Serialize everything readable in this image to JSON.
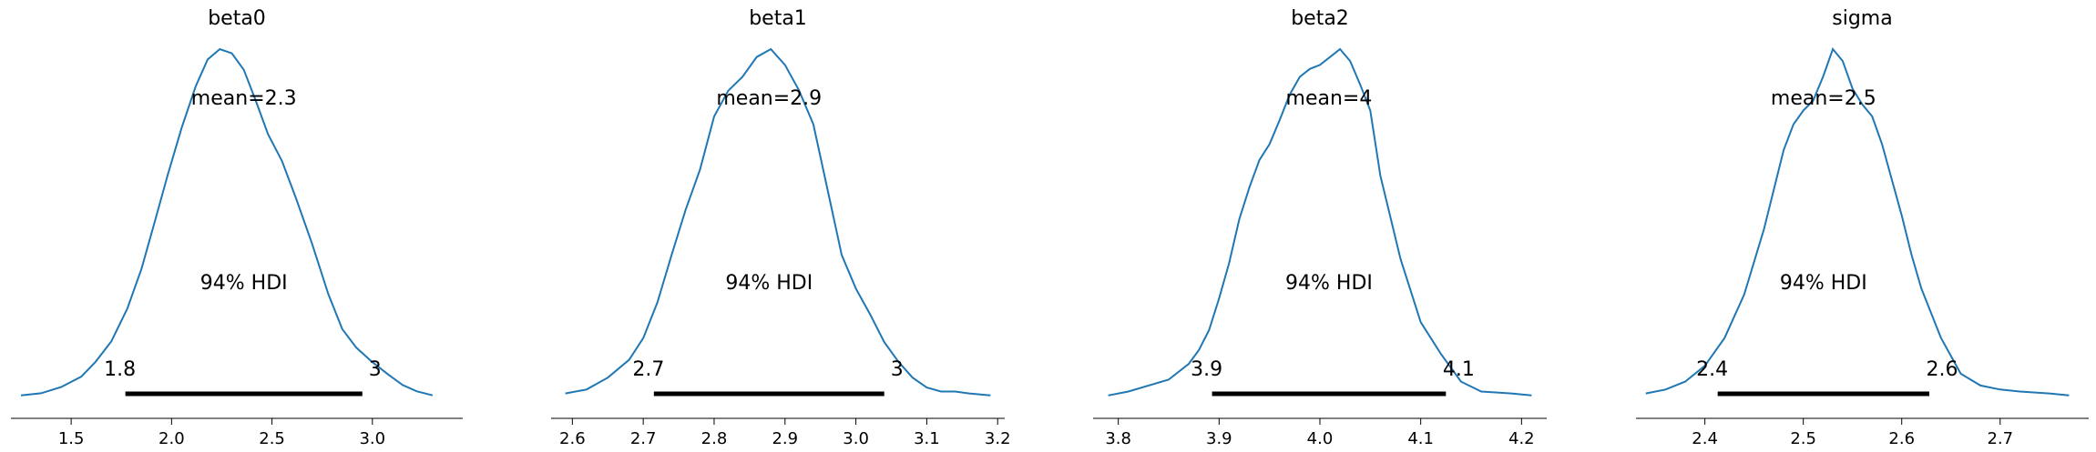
{
  "chart_data": [
    {
      "type": "line",
      "title": "beta0",
      "mean_label": "mean=2.3",
      "hdi_label": "94% HDI",
      "hdi": [
        1.77,
        2.95
      ],
      "hdi_low_label": "1.8",
      "hdi_high_label": "3",
      "xlim": [
        1.2,
        3.45
      ],
      "xticks": [
        1.5,
        2.0,
        2.5,
        3.0
      ],
      "xtick_labels": [
        "1.5",
        "2.0",
        "2.5",
        "3.0"
      ],
      "density": {
        "x": [
          1.25,
          1.35,
          1.45,
          1.55,
          1.62,
          1.7,
          1.78,
          1.85,
          1.92,
          1.98,
          2.05,
          2.12,
          2.18,
          2.24,
          2.3,
          2.36,
          2.42,
          2.48,
          2.55,
          2.62,
          2.7,
          2.78,
          2.85,
          2.92,
          3.0,
          3.08,
          3.15,
          3.22,
          3.3
        ],
        "y": [
          0.01,
          0.02,
          0.05,
          0.1,
          0.17,
          0.27,
          0.43,
          0.62,
          0.86,
          1.07,
          1.3,
          1.5,
          1.63,
          1.68,
          1.66,
          1.58,
          1.43,
          1.27,
          1.14,
          0.96,
          0.74,
          0.5,
          0.33,
          0.24,
          0.17,
          0.11,
          0.06,
          0.03,
          0.01
        ]
      }
    },
    {
      "type": "line",
      "title": "beta1",
      "mean_label": "mean=2.9",
      "hdi_label": "94% HDI",
      "hdi": [
        2.715,
        3.04
      ],
      "hdi_low_label": "2.7",
      "hdi_high_label": "3",
      "xlim": [
        2.57,
        3.21
      ],
      "xticks": [
        2.6,
        2.7,
        2.8,
        2.9,
        3.0,
        3.1,
        3.2
      ],
      "xtick_labels": [
        "2.6",
        "2.7",
        "2.8",
        "2.9",
        "3.0",
        "3.1",
        "3.2"
      ],
      "density": {
        "x": [
          2.59,
          2.62,
          2.65,
          2.68,
          2.7,
          2.72,
          2.74,
          2.76,
          2.78,
          2.8,
          2.82,
          2.84,
          2.86,
          2.88,
          2.9,
          2.92,
          2.94,
          2.96,
          2.98,
          3.0,
          3.02,
          3.04,
          3.06,
          3.08,
          3.1,
          3.12,
          3.14,
          3.16,
          3.19
        ],
        "y": [
          0.02,
          0.04,
          0.1,
          0.19,
          0.3,
          0.48,
          0.72,
          0.95,
          1.15,
          1.42,
          1.55,
          1.62,
          1.72,
          1.76,
          1.68,
          1.55,
          1.38,
          1.05,
          0.72,
          0.55,
          0.42,
          0.28,
          0.18,
          0.1,
          0.05,
          0.03,
          0.03,
          0.02,
          0.01
        ]
      }
    },
    {
      "type": "line",
      "title": "beta2",
      "mean_label": "mean=4",
      "hdi_label": "94% HDI",
      "hdi": [
        3.893,
        4.125
      ],
      "hdi_low_label": "3.9",
      "hdi_high_label": "4.1",
      "xlim": [
        3.775,
        4.225
      ],
      "xticks": [
        3.8,
        3.9,
        4.0,
        4.1,
        4.2
      ],
      "xtick_labels": [
        "3.8",
        "3.9",
        "4.0",
        "4.1",
        "4.2"
      ],
      "density": {
        "x": [
          3.79,
          3.81,
          3.83,
          3.85,
          3.87,
          3.88,
          3.89,
          3.9,
          3.91,
          3.92,
          3.93,
          3.94,
          3.95,
          3.96,
          3.97,
          3.98,
          3.99,
          4.0,
          4.01,
          4.02,
          4.03,
          4.04,
          4.05,
          4.06,
          4.08,
          4.1,
          4.12,
          4.14,
          4.16,
          4.19,
          4.21
        ],
        "y": [
          0.01,
          0.03,
          0.06,
          0.09,
          0.17,
          0.24,
          0.34,
          0.5,
          0.68,
          0.9,
          1.06,
          1.2,
          1.28,
          1.4,
          1.53,
          1.62,
          1.66,
          1.68,
          1.72,
          1.76,
          1.7,
          1.58,
          1.45,
          1.12,
          0.7,
          0.38,
          0.22,
          0.08,
          0.03,
          0.02,
          0.01
        ]
      }
    },
    {
      "type": "line",
      "title": "sigma",
      "mean_label": "mean=2.5",
      "hdi_label": "94% HDI",
      "hdi": [
        2.413,
        2.628
      ],
      "hdi_low_label": "2.4",
      "hdi_high_label": "2.6",
      "xlim": [
        2.33,
        2.79
      ],
      "xticks": [
        2.4,
        2.5,
        2.6,
        2.7
      ],
      "xtick_labels": [
        "2.4",
        "2.5",
        "2.6",
        "2.7"
      ],
      "density": {
        "x": [
          2.34,
          2.36,
          2.38,
          2.4,
          2.42,
          2.44,
          2.46,
          2.47,
          2.48,
          2.49,
          2.5,
          2.51,
          2.52,
          2.53,
          2.54,
          2.55,
          2.56,
          2.57,
          2.58,
          2.59,
          2.6,
          2.61,
          2.62,
          2.64,
          2.66,
          2.68,
          2.7,
          2.72,
          2.75,
          2.77
        ],
        "y": [
          0.02,
          0.04,
          0.08,
          0.16,
          0.3,
          0.52,
          0.85,
          1.05,
          1.25,
          1.38,
          1.45,
          1.5,
          1.62,
          1.76,
          1.7,
          1.56,
          1.48,
          1.42,
          1.28,
          1.1,
          0.92,
          0.72,
          0.55,
          0.3,
          0.12,
          0.06,
          0.04,
          0.03,
          0.02,
          0.01
        ]
      }
    }
  ],
  "colors": {
    "density_line": "#1f77b4",
    "hdi_bar": "#000000",
    "axis": "#000000"
  }
}
